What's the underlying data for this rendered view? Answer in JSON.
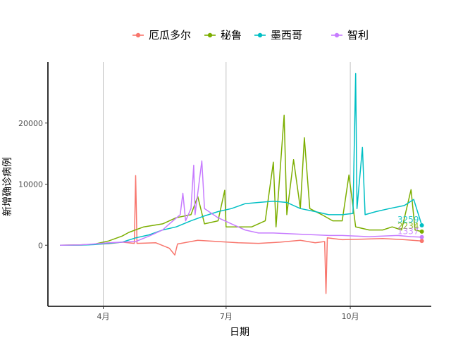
{
  "chart_data": {
    "type": "line",
    "title": "",
    "xlabel": "日期",
    "ylabel": "新增确诊病例",
    "x_range": [
      "2020-02-20",
      "2020-11-30"
    ],
    "ylim": [
      -10000,
      30000
    ],
    "y_ticks": [
      0,
      10000,
      20000
    ],
    "y_tick_labels": [
      "0",
      "10000",
      "20000"
    ],
    "x_ticks": [
      "2020-04-01",
      "2020-07-01",
      "2020-10-01"
    ],
    "x_tick_labels": [
      "4月",
      "7月",
      "10月"
    ],
    "grid": "vertical major gridlines only",
    "legend": "top",
    "series": [
      {
        "name": "厄瓜多尔",
        "color": "#F8766D",
        "end_label": "",
        "points": [
          [
            "2020-02-29",
            0
          ],
          [
            "2020-03-15",
            30
          ],
          [
            "2020-03-25",
            150
          ],
          [
            "2020-04-05",
            250
          ],
          [
            "2020-04-15",
            500
          ],
          [
            "2020-04-24",
            300
          ],
          [
            "2020-04-25",
            11400
          ],
          [
            "2020-04-26",
            300
          ],
          [
            "2020-05-10",
            400
          ],
          [
            "2020-05-20",
            -500
          ],
          [
            "2020-05-24",
            -1600
          ],
          [
            "2020-05-26",
            200
          ],
          [
            "2020-06-10",
            800
          ],
          [
            "2020-06-25",
            600
          ],
          [
            "2020-07-10",
            400
          ],
          [
            "2020-07-25",
            300
          ],
          [
            "2020-08-10",
            500
          ],
          [
            "2020-08-25",
            800
          ],
          [
            "2020-09-05",
            400
          ],
          [
            "2020-09-12",
            600
          ],
          [
            "2020-09-13",
            -7900
          ],
          [
            "2020-09-14",
            1200
          ],
          [
            "2020-09-25",
            900
          ],
          [
            "2020-10-10",
            1000
          ],
          [
            "2020-10-25",
            1100
          ],
          [
            "2020-11-10",
            900
          ],
          [
            "2020-11-23",
            700
          ]
        ]
      },
      {
        "name": "秘鲁",
        "color": "#7CAE00",
        "end_label": "2234",
        "points": [
          [
            "2020-02-29",
            0
          ],
          [
            "2020-03-15",
            50
          ],
          [
            "2020-03-25",
            150
          ],
          [
            "2020-04-05",
            700
          ],
          [
            "2020-04-15",
            1500
          ],
          [
            "2020-04-20",
            2100
          ],
          [
            "2020-05-01",
            3000
          ],
          [
            "2020-05-15",
            3500
          ],
          [
            "2020-05-25",
            4500
          ],
          [
            "2020-06-05",
            5000
          ],
          [
            "2020-06-10",
            8000
          ],
          [
            "2020-06-15",
            3500
          ],
          [
            "2020-06-25",
            4000
          ],
          [
            "2020-06-30",
            9000
          ],
          [
            "2020-07-01",
            3000
          ],
          [
            "2020-07-10",
            3000
          ],
          [
            "2020-07-20",
            3000
          ],
          [
            "2020-07-30",
            4000
          ],
          [
            "2020-08-05",
            13600
          ],
          [
            "2020-08-07",
            3000
          ],
          [
            "2020-08-13",
            21300
          ],
          [
            "2020-08-15",
            5000
          ],
          [
            "2020-08-20",
            14000
          ],
          [
            "2020-08-25",
            6000
          ],
          [
            "2020-08-28",
            17600
          ],
          [
            "2020-09-01",
            6000
          ],
          [
            "2020-09-10",
            5000
          ],
          [
            "2020-09-18",
            4000
          ],
          [
            "2020-09-25",
            4000
          ],
          [
            "2020-09-30",
            11500
          ],
          [
            "2020-10-05",
            3000
          ],
          [
            "2020-10-15",
            2500
          ],
          [
            "2020-10-25",
            2500
          ],
          [
            "2020-11-01",
            3000
          ],
          [
            "2020-11-08",
            2500
          ],
          [
            "2020-11-15",
            9100
          ],
          [
            "2020-11-18",
            2500
          ],
          [
            "2020-11-23",
            2234
          ]
        ]
      },
      {
        "name": "墨西哥",
        "color": "#00BFC4",
        "end_label": "3259",
        "points": [
          [
            "2020-02-29",
            0
          ],
          [
            "2020-03-15",
            20
          ],
          [
            "2020-03-25",
            100
          ],
          [
            "2020-04-05",
            300
          ],
          [
            "2020-04-15",
            500
          ],
          [
            "2020-04-25",
            1200
          ],
          [
            "2020-05-05",
            1700
          ],
          [
            "2020-05-15",
            2500
          ],
          [
            "2020-05-25",
            3000
          ],
          [
            "2020-06-05",
            4000
          ],
          [
            "2020-06-15",
            4800
          ],
          [
            "2020-06-25",
            5500
          ],
          [
            "2020-07-05",
            6000
          ],
          [
            "2020-07-15",
            6800
          ],
          [
            "2020-07-25",
            7000
          ],
          [
            "2020-08-05",
            7200
          ],
          [
            "2020-08-15",
            7000
          ],
          [
            "2020-08-25",
            6000
          ],
          [
            "2020-09-05",
            5500
          ],
          [
            "2020-09-15",
            5000
          ],
          [
            "2020-09-25",
            5000
          ],
          [
            "2020-10-03",
            5200
          ],
          [
            "2020-10-05",
            28100
          ],
          [
            "2020-10-06",
            6000
          ],
          [
            "2020-10-10",
            16000
          ],
          [
            "2020-10-12",
            5000
          ],
          [
            "2020-10-20",
            5500
          ],
          [
            "2020-10-30",
            6000
          ],
          [
            "2020-11-10",
            6500
          ],
          [
            "2020-11-17",
            7500
          ],
          [
            "2020-11-23",
            3259
          ]
        ]
      },
      {
        "name": "智利",
        "color": "#C77CFF",
        "end_label": "1337",
        "points": [
          [
            "2020-02-29",
            0
          ],
          [
            "2020-03-15",
            50
          ],
          [
            "2020-03-25",
            200
          ],
          [
            "2020-04-05",
            400
          ],
          [
            "2020-04-15",
            500
          ],
          [
            "2020-04-25",
            600
          ],
          [
            "2020-05-05",
            1500
          ],
          [
            "2020-05-15",
            2500
          ],
          [
            "2020-05-20",
            3500
          ],
          [
            "2020-05-28",
            5000
          ],
          [
            "2020-05-30",
            8500
          ],
          [
            "2020-06-01",
            4000
          ],
          [
            "2020-06-05",
            6000
          ],
          [
            "2020-06-07",
            13100
          ],
          [
            "2020-06-08",
            5000
          ],
          [
            "2020-06-13",
            13800
          ],
          [
            "2020-06-15",
            6000
          ],
          [
            "2020-06-25",
            4500
          ],
          [
            "2020-07-05",
            3500
          ],
          [
            "2020-07-15",
            2500
          ],
          [
            "2020-07-25",
            2000
          ],
          [
            "2020-08-05",
            2000
          ],
          [
            "2020-08-15",
            1900
          ],
          [
            "2020-08-25",
            1800
          ],
          [
            "2020-09-05",
            1700
          ],
          [
            "2020-09-15",
            1600
          ],
          [
            "2020-09-25",
            1600
          ],
          [
            "2020-10-05",
            1500
          ],
          [
            "2020-10-15",
            1400
          ],
          [
            "2020-10-25",
            1500
          ],
          [
            "2020-11-05",
            1600
          ],
          [
            "2020-11-15",
            1400
          ],
          [
            "2020-11-23",
            1337
          ]
        ]
      }
    ]
  }
}
